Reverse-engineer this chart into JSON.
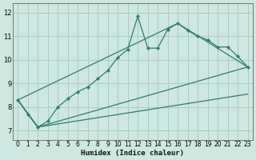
{
  "xlabel": "Humidex (Indice chaleur)",
  "bg_color": "#cce8e0",
  "line_color": "#2e7d6e",
  "grid_color": "#aaccc4",
  "xlim": [
    -0.5,
    23.5
  ],
  "ylim": [
    6.6,
    12.4
  ],
  "xticks": [
    0,
    1,
    2,
    3,
    4,
    5,
    6,
    7,
    8,
    9,
    10,
    11,
    12,
    13,
    14,
    15,
    16,
    17,
    18,
    19,
    20,
    21,
    22,
    23
  ],
  "yticks": [
    7,
    8,
    9,
    10,
    11,
    12
  ],
  "main_line": [
    [
      0,
      8.3
    ],
    [
      1,
      7.7
    ],
    [
      2,
      7.15
    ],
    [
      3,
      7.4
    ],
    [
      4,
      8.0
    ],
    [
      5,
      8.35
    ],
    [
      6,
      8.65
    ],
    [
      7,
      8.85
    ],
    [
      8,
      9.2
    ],
    [
      9,
      9.55
    ],
    [
      10,
      10.1
    ],
    [
      11,
      10.45
    ],
    [
      12,
      11.85
    ],
    [
      13,
      10.5
    ],
    [
      14,
      10.5
    ],
    [
      15,
      11.3
    ],
    [
      16,
      11.55
    ],
    [
      17,
      11.25
    ],
    [
      18,
      11.0
    ],
    [
      19,
      10.85
    ],
    [
      20,
      10.55
    ],
    [
      21,
      10.55
    ],
    [
      22,
      10.15
    ],
    [
      23,
      9.7
    ]
  ],
  "lower_line1": [
    [
      0,
      8.3
    ],
    [
      2,
      7.15
    ],
    [
      23,
      9.7
    ]
  ],
  "lower_line2": [
    [
      0,
      8.3
    ],
    [
      2,
      7.15
    ],
    [
      23,
      8.55
    ]
  ],
  "upper_line": [
    [
      0,
      8.3
    ],
    [
      16,
      11.55
    ],
    [
      23,
      9.7
    ]
  ]
}
